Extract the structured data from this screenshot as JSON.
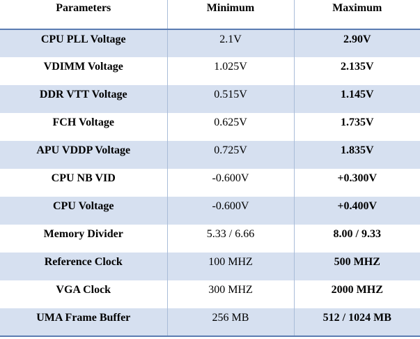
{
  "table": {
    "headers": [
      "Parameters",
      "Minimum",
      "Maximum"
    ],
    "rows": [
      {
        "parameter": "CPU PLL Voltage",
        "minimum": "2.1V",
        "maximum": "2.90V"
      },
      {
        "parameter": "VDIMM Voltage",
        "minimum": "1.025V",
        "maximum": "2.135V"
      },
      {
        "parameter": "DDR VTT Voltage",
        "minimum": "0.515V",
        "maximum": "1.145V"
      },
      {
        "parameter": "FCH Voltage",
        "minimum": "0.625V",
        "maximum": "1.735V"
      },
      {
        "parameter": "APU VDDP Voltage",
        "minimum": "0.725V",
        "maximum": "1.835V"
      },
      {
        "parameter": "CPU NB VID",
        "minimum": "-0.600V",
        "maximum": "+0.300V"
      },
      {
        "parameter": "CPU Voltage",
        "minimum": "-0.600V",
        "maximum": "+0.400V"
      },
      {
        "parameter": "Memory Divider",
        "minimum": "5.33 / 6.66",
        "maximum": "8.00 / 9.33"
      },
      {
        "parameter": "Reference Clock",
        "minimum": "100 MHZ",
        "maximum": "500 MHZ"
      },
      {
        "parameter": "VGA Clock",
        "minimum": "300 MHZ",
        "maximum": "2000 MHZ"
      },
      {
        "parameter": "UMA Frame Buffer",
        "minimum": "256 MB",
        "maximum": "512 / 1024 MB"
      }
    ]
  },
  "colors": {
    "band": "#d6e0f0",
    "rule": "#5b7cb2"
  }
}
